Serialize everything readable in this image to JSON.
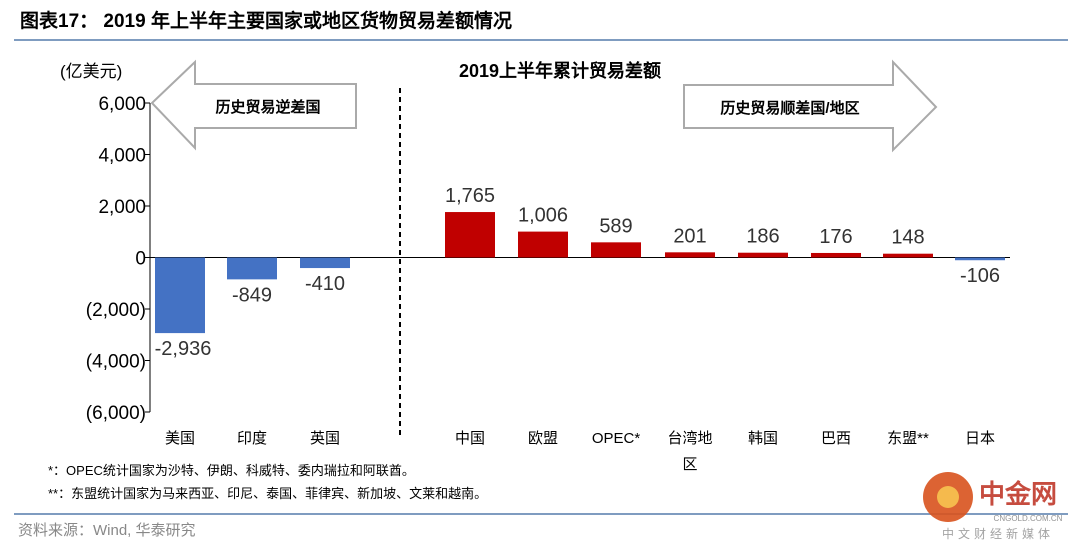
{
  "header": {
    "title": "图表17：  2019 年上半年主要国家或地区货物贸易差额情况"
  },
  "chart_data": {
    "type": "bar",
    "title": "2019上半年累计贸易差额",
    "ylabel": "(亿美元)",
    "ylim": [
      -6000,
      6000
    ],
    "yticks": [
      6000,
      4000,
      2000,
      0,
      -2000,
      -4000,
      -6000
    ],
    "ytick_labels": [
      "6,000",
      "4,000",
      "2,000",
      "0",
      "(2,000)",
      "(4,000)",
      "(6,000)"
    ],
    "categories": [
      "美国",
      "印度",
      "英国",
      "中国",
      "欧盟",
      "OPEC*",
      "台湾地区",
      "韩国",
      "巴西",
      "东盟**",
      "日本"
    ],
    "values": [
      -2936,
      -849,
      -410,
      1765,
      1006,
      589,
      201,
      186,
      176,
      148,
      -106
    ],
    "data_labels": [
      "-2,936",
      "-849",
      "-410",
      "1,765",
      "1,006",
      "589",
      "201",
      "186",
      "176",
      "148",
      "-106"
    ],
    "colors": {
      "deficit": "#4472C4",
      "surplus": "#C00000"
    },
    "annotations": {
      "left_arrow": "历史贸易逆差国",
      "right_arrow": "历史贸易顺差国/地区"
    }
  },
  "notes": [
    "*：OPEC统计国家为沙特、伊朗、科威特、委内瑞拉和阿联酋。",
    "**：东盟统计国家为马来西亚、印尼、泰国、菲律宾、新加坡、文莱和越南。"
  ],
  "source": "资料来源：Wind, 华泰研究",
  "watermark": {
    "name": "中金网",
    "domain": "CNGOLD.COM.CN",
    "tagline": "中文财经新媒体"
  }
}
